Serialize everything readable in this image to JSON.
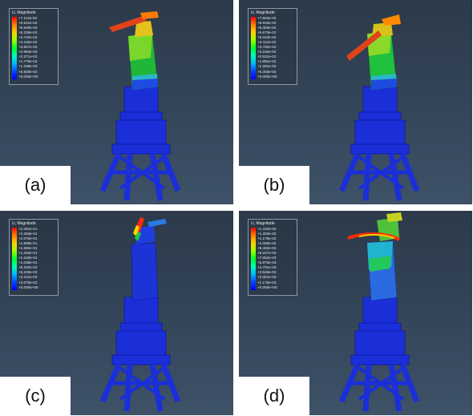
{
  "figure": {
    "panels": [
      {
        "label": "(a)",
        "legend": {
          "title": "U, Magnitude",
          "values": [
            "+7.114e-02",
            "+6.521e-02",
            "+5.928e-02",
            "+5.335e-02",
            "+4.742e-02",
            "+4.150e-02",
            "+3.557e-02",
            "+2.964e-02",
            "+2.371e-02",
            "+1.778e-02",
            "+1.186e-02",
            "+5.928e-03",
            "+0.000e+00"
          ]
        }
      },
      {
        "label": "(b)",
        "legend": {
          "title": "U, Magnitude",
          "values": [
            "+7.564e-02",
            "+6.933e-02",
            "+6.303e-02",
            "+5.673e-02",
            "+5.043e-02",
            "+4.412e-02",
            "+3.782e-02",
            "+3.152e-02",
            "+2.521e-02",
            "+1.891e-02",
            "+1.261e-02",
            "+6.303e-03",
            "+0.000e+00"
          ]
        }
      },
      {
        "label": "(c)",
        "legend": {
          "title": "U, Magnitude",
          "values": [
            "+2.491e-01",
            "+2.283e-01",
            "+2.075e-01",
            "+1.868e-01",
            "+1.660e-01",
            "+1.453e-01",
            "+1.245e-01",
            "+1.038e-01",
            "+8.302e-02",
            "+6.226e-02",
            "+4.151e-02",
            "+2.075e-02",
            "+0.000e+00"
          ]
        }
      },
      {
        "label": "(d)",
        "legend": {
          "title": "U, Magnitude",
          "values": [
            "+1.410e-02",
            "+1.293e-02",
            "+1.175e-02",
            "+1.058e-02",
            "+9.402e-03",
            "+8.227e-03",
            "+7.052e-03",
            "+5.876e-03",
            "+4.701e-03",
            "+3.526e-03",
            "+2.351e-03",
            "+1.175e-03",
            "+0.000e+00"
          ]
        }
      }
    ]
  }
}
